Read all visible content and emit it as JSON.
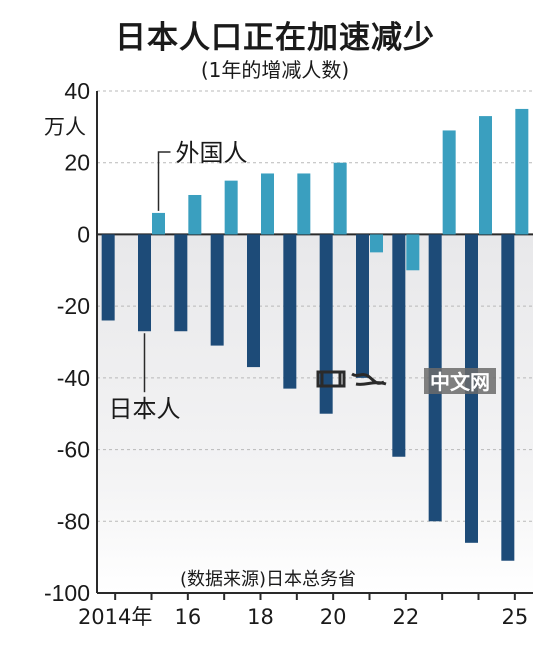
{
  "chart_data": {
    "type": "bar",
    "title": "日本人口正在加速减少",
    "subtitle": "(1年的增减人数)",
    "ylabel": "万人",
    "ylim": [
      -100,
      40
    ],
    "yticks": [
      40,
      20,
      0,
      -20,
      -40,
      -60,
      -80,
      -100
    ],
    "x": [
      2014,
      2015,
      2016,
      2017,
      2018,
      2019,
      2020,
      2021,
      2022,
      2023,
      2024,
      2025
    ],
    "xtick_labels": [
      {
        "x": 2014,
        "label": "2014年"
      },
      {
        "x": 2016,
        "label": "16"
      },
      {
        "x": 2018,
        "label": "18"
      },
      {
        "x": 2020,
        "label": "20"
      },
      {
        "x": 2022,
        "label": "22"
      },
      {
        "x": 2025,
        "label": "25"
      }
    ],
    "series": [
      {
        "name": "日本人",
        "color": "#1d4b78",
        "values": [
          -24,
          -27,
          -27,
          -31,
          -37,
          -43,
          -50,
          -40,
          -62,
          -80,
          -86,
          -91
        ]
      },
      {
        "name": "外国人",
        "color": "#3a9fbf",
        "values": [
          null,
          6,
          11,
          15,
          17,
          17,
          20,
          -5,
          -10,
          29,
          33,
          35
        ]
      }
    ],
    "grid": "horizontal-dashed",
    "source": "(数据来源)日本总务省"
  },
  "watermark": {
    "text": "中文网"
  },
  "colors": {
    "negative_region": "#e8e8ea",
    "gridline": "#b9b9b9"
  }
}
